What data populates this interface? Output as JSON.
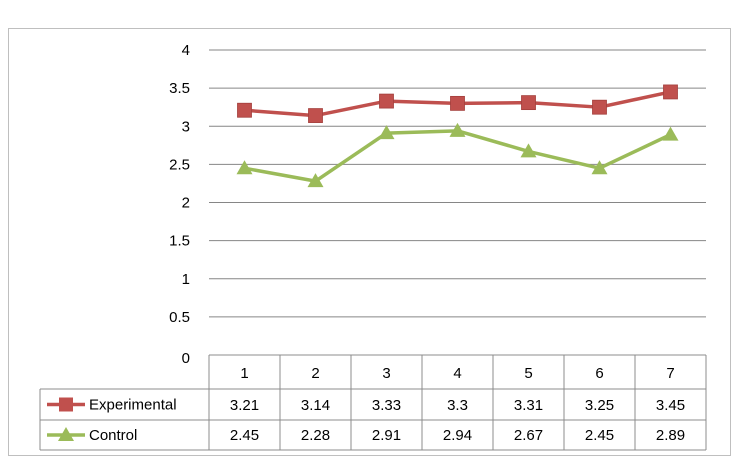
{
  "chart_data": {
    "type": "line",
    "categories": [
      "1",
      "2",
      "3",
      "4",
      "5",
      "6",
      "7"
    ],
    "series": [
      {
        "name": "Experimental",
        "values": [
          3.21,
          3.14,
          3.33,
          3.3,
          3.31,
          3.25,
          3.45
        ],
        "labels": [
          "3.21",
          "3.14",
          "3.33",
          "3.3",
          "3.31",
          "3.25",
          "3.45"
        ],
        "color": "#c0504d",
        "marker": "square"
      },
      {
        "name": "Control",
        "values": [
          2.45,
          2.28,
          2.91,
          2.94,
          2.67,
          2.45,
          2.89
        ],
        "labels": [
          "2.45",
          "2.28",
          "2.91",
          "2.94",
          "2.67",
          "2.45",
          "2.89"
        ],
        "color": "#9bbb59",
        "marker": "triangle"
      }
    ],
    "ylim": [
      0,
      4
    ],
    "yticks": [
      "0",
      "0.5",
      "1",
      "1.5",
      "2",
      "2.5",
      "3",
      "3.5",
      "4"
    ],
    "grid": true,
    "legend": "data-table",
    "gridline_color": "#868686",
    "table_border_color": "#8c8c8c"
  }
}
